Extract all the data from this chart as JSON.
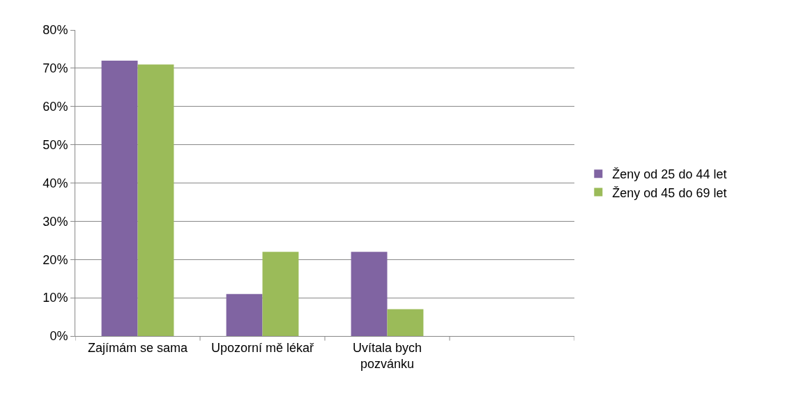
{
  "chart_data": {
    "type": "bar",
    "categories": [
      "Zajímám se sama",
      "Upozorní mě lékař",
      "Uvítala bych pozvánku",
      null
    ],
    "series": [
      {
        "name": "Ženy od 25 do 44 let",
        "color": "#8064a2",
        "values": [
          72,
          11,
          22,
          null
        ]
      },
      {
        "name": "Ženy od 45 do 69 let",
        "color": "#9bbb59",
        "values": [
          71,
          22,
          7,
          null
        ]
      }
    ],
    "ylim": [
      0,
      80
    ],
    "yticks": [
      {
        "value": 0,
        "label": "0%"
      },
      {
        "value": 10,
        "label": "10%"
      },
      {
        "value": 20,
        "label": "20%"
      },
      {
        "value": 30,
        "label": "30%"
      },
      {
        "value": 40,
        "label": "40%"
      },
      {
        "value": 50,
        "label": "50%"
      },
      {
        "value": 60,
        "label": "60%"
      },
      {
        "value": 70,
        "label": "70%"
      },
      {
        "value": 80,
        "label": "80%"
      }
    ],
    "grid": "y",
    "legend": "right"
  }
}
